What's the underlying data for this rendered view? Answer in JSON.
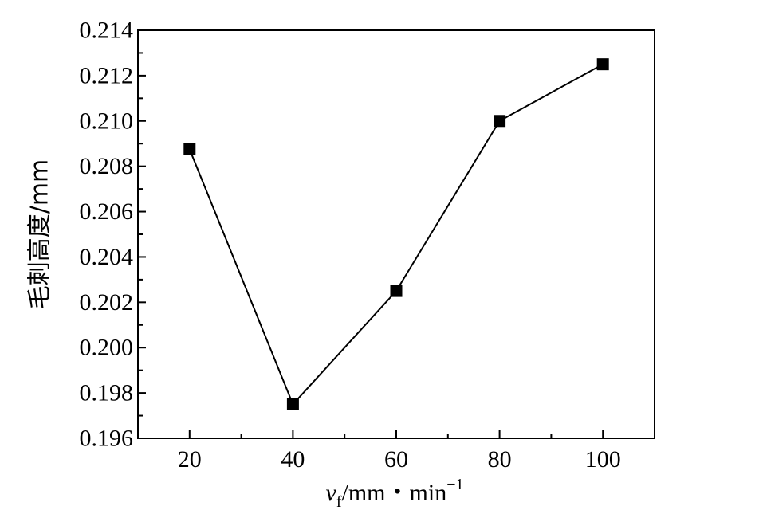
{
  "chart_data": {
    "type": "line",
    "title": "",
    "xlabel": "vf/mm・min⁻¹",
    "xlabel_parts": {
      "var": "v",
      "sub": "f",
      "unit": "/mm・min",
      "sup": "−1"
    },
    "ylabel": "毛刺高度/mm",
    "x": [
      20,
      40,
      60,
      80,
      100
    ],
    "series": [
      {
        "name": "",
        "values": [
          0.20875,
          0.1975,
          0.2025,
          0.21,
          0.2125
        ]
      }
    ],
    "xlim": [
      10,
      110
    ],
    "ylim": [
      0.196,
      0.214
    ],
    "x_ticks": [
      20,
      40,
      60,
      80,
      100
    ],
    "y_ticks": [
      0.196,
      0.198,
      0.2,
      0.202,
      0.204,
      0.206,
      0.208,
      0.21,
      0.212,
      0.214
    ],
    "y_tick_labels": [
      "0.196",
      "0.198",
      "0.200",
      "0.202",
      "0.204",
      "0.206",
      "0.208",
      "0.210",
      "0.212",
      "0.214"
    ],
    "x_tick_labels": [
      "20",
      "40",
      "60",
      "80",
      "100"
    ],
    "marker": "square",
    "grid": false,
    "legend": "none",
    "colors": {
      "line": "#000000",
      "marker": "#000000",
      "axes": "#000000"
    }
  }
}
